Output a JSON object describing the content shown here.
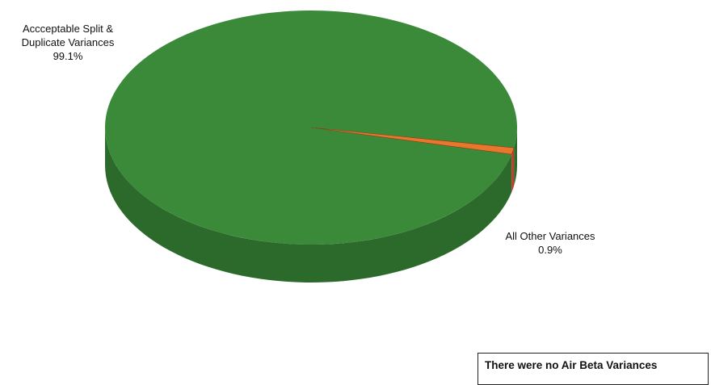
{
  "chart_data": {
    "type": "pie",
    "categories": [
      "Accceptable Split & Duplicate Variances",
      "All Other Variances"
    ],
    "values": [
      99.1,
      0.9
    ],
    "labels": [
      {
        "line1": "Accceptable Split &",
        "line2": "Duplicate Variances",
        "pct": "99.1%"
      },
      {
        "line1": "All Other Variances",
        "line2": "",
        "pct": "0.9%"
      }
    ],
    "colors": [
      "#3b8a3a",
      "#e8772e"
    ],
    "side_colors": [
      "#2c6a2c",
      "#c0392b"
    ],
    "style": "3d"
  },
  "note": "There were no Air Beta Variances"
}
